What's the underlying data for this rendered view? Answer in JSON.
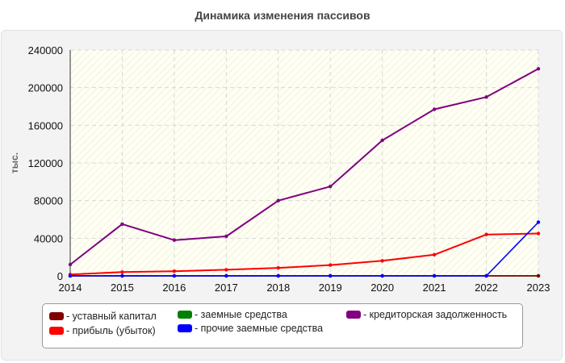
{
  "chart_data": {
    "type": "line",
    "title": "Динамика изменения пассивов",
    "ylabel": "тыс.",
    "x": [
      2014,
      2015,
      2016,
      2017,
      2018,
      2019,
      2020,
      2021,
      2022,
      2023
    ],
    "xlim": [
      2014,
      2023
    ],
    "ylim": [
      0,
      240000
    ],
    "yticks": [
      "0",
      "40000",
      "80000",
      "120000",
      "160000",
      "200000",
      "240000"
    ],
    "xticks": [
      "2014",
      "2015",
      "2016",
      "2017",
      "2018",
      "2019",
      "2020",
      "2021",
      "2022",
      "2023"
    ],
    "grid": true,
    "legend_position": "bottom",
    "series": [
      {
        "name": "уставный капитал",
        "color": "#800000",
        "values": [
          100,
          100,
          100,
          100,
          100,
          100,
          100,
          100,
          100,
          100
        ]
      },
      {
        "name": "прибыль (убыток)",
        "color": "#ff0000",
        "values": [
          1500,
          4000,
          5000,
          6500,
          8500,
          11500,
          16000,
          22500,
          44000,
          45000
        ]
      },
      {
        "name": "заемные средства",
        "color": "#008000",
        "values": [
          0,
          0,
          0,
          0,
          0,
          0,
          0,
          0,
          0,
          0
        ]
      },
      {
        "name": "прочие заемные средства",
        "color": "#0000ff",
        "values": [
          0,
          0,
          0,
          0,
          0,
          0,
          0,
          0,
          0,
          57000
        ]
      },
      {
        "name": "кредиторская задолженность",
        "color": "#800080",
        "values": [
          12000,
          55000,
          38000,
          42000,
          80000,
          95000,
          144000,
          177000,
          190000,
          220000
        ]
      }
    ]
  }
}
